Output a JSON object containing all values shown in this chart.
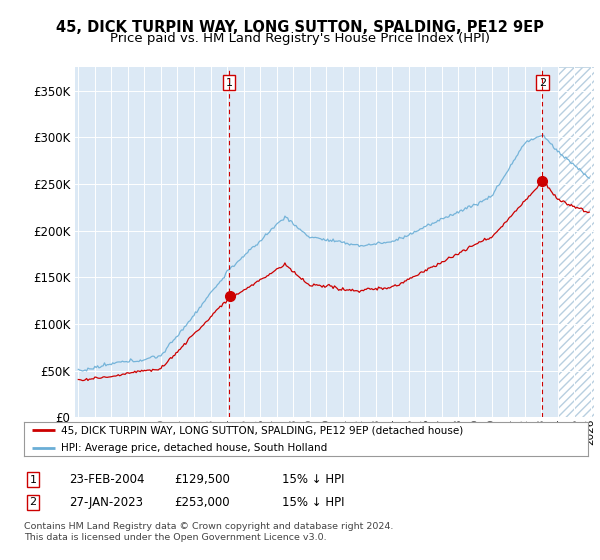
{
  "title": "45, DICK TURPIN WAY, LONG SUTTON, SPALDING, PE12 9EP",
  "subtitle": "Price paid vs. HM Land Registry's House Price Index (HPI)",
  "title_fontsize": 10.5,
  "subtitle_fontsize": 9.5,
  "bg_color": "#dce9f5",
  "hatch_color": "#b8cfe0",
  "line_color_hpi": "#6aaed6",
  "line_color_price": "#cc0000",
  "dashed_line_color": "#cc0000",
  "ylim": [
    0,
    375000
  ],
  "yticks": [
    0,
    50000,
    100000,
    150000,
    200000,
    250000,
    300000,
    350000
  ],
  "ytick_labels": [
    "£0",
    "£50K",
    "£100K",
    "£150K",
    "£200K",
    "£250K",
    "£300K",
    "£350K"
  ],
  "sale1_date_idx": 2004.13,
  "sale1_price": 129500,
  "sale2_date_idx": 2023.08,
  "sale2_price": 253000,
  "legend_line1": "45, DICK TURPIN WAY, LONG SUTTON, SPALDING, PE12 9EP (detached house)",
  "legend_line2": "HPI: Average price, detached house, South Holland",
  "footnote1": "Contains HM Land Registry data © Crown copyright and database right 2024.",
  "footnote2": "This data is licensed under the Open Government Licence v3.0.",
  "table_row1": [
    "1",
    "23-FEB-2004",
    "£129,500",
    "15% ↓ HPI"
  ],
  "table_row2": [
    "2",
    "27-JAN-2023",
    "£253,000",
    "15% ↓ HPI"
  ]
}
